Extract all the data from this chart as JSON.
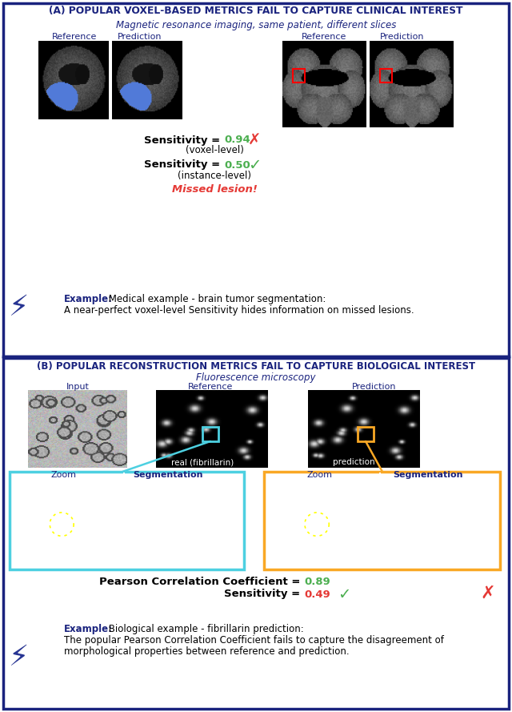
{
  "panel_a_title": "(A) POPULAR VOXEL-BASED METRICS FAIL TO CAPTURE CLINICAL INTEREST",
  "panel_a_subtitle": "Magnetic resonance imaging, same patient, different slices",
  "panel_b_title": "(B) POPULAR RECONSTRUCTION METRICS FAIL TO CAPTURE BIOLOGICAL INTEREST",
  "panel_b_subtitle": "Fluorescence microscopy",
  "sensitivity_voxel_value": "0.94",
  "sensitivity_voxel_sub": "(voxel-level)",
  "sensitivity_instance_value": "0.50",
  "sensitivity_instance_sub": "(instance-level)",
  "missed_lesion": "Missed lesion!",
  "example_a_bold": "Example:",
  "example_a_line1": " Medical example - brain tumor segmentation:",
  "example_a_line2": "A near-perfect voxel-level Sensitivity hides information on missed lesions.",
  "pearson_label": "Pearson Correlation Coefficient = ",
  "pearson_value": "0.89",
  "sensitivity_b_value": "0.49",
  "example_b_bold": "Example:",
  "example_b_line1": " Biological example - fibrillarin prediction:",
  "example_b_line2": "The popular Pearson Correlation Coefficient fails to capture the disagreement of",
  "example_b_line3": "morphological properties between reference and prediction.",
  "ref_label": "Reference",
  "pred_label": "Prediction",
  "input_label": "Input",
  "zoom_label": "Zoom",
  "seg_label": "Segmentation",
  "real_fibril": "real (fibrillarin)",
  "prediction_fibril": "prediction",
  "border_color": "#1a237e",
  "title_color": "#1a237e",
  "subtitle_color": "#1a237e",
  "green_value_color": "#4caf50",
  "red_value_color": "#e53935",
  "missed_color": "#e53935",
  "check_color": "#4caf50",
  "cross_color": "#e53935",
  "lightning_color": "#283593",
  "cyan_box_color": "#4dd0e1",
  "orange_box_color": "#f9a825",
  "bg_color": "#ffffff"
}
